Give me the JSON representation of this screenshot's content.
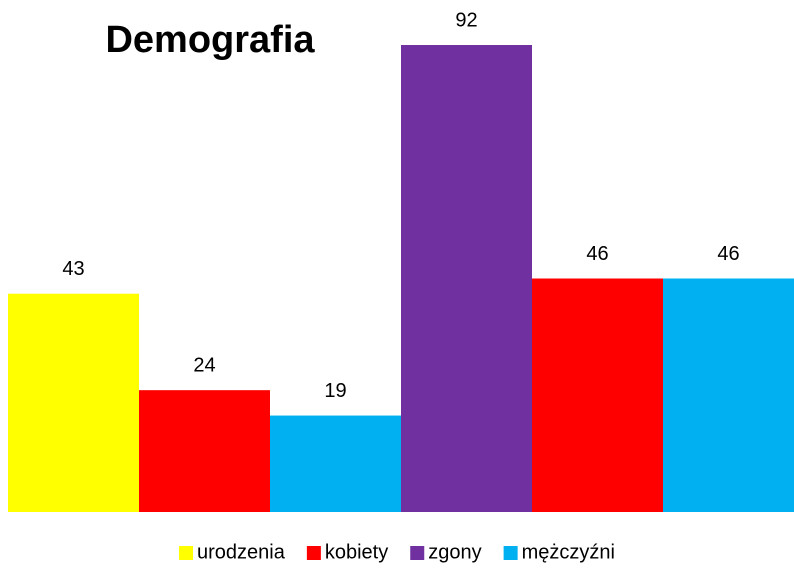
{
  "chart_data": {
    "type": "bar",
    "title": "Demografia",
    "categories": [
      null,
      null,
      null,
      null,
      null,
      null
    ],
    "series": [
      {
        "name": "urodzenia",
        "color": "#ffff00",
        "values": [
          43,
          null,
          null,
          null,
          null,
          null
        ]
      },
      {
        "name": "kobiety",
        "color": "#ff0000",
        "values": [
          null,
          24,
          null,
          null,
          46,
          null
        ]
      },
      {
        "name": "zgony",
        "color": "#7030a0",
        "values": [
          null,
          null,
          null,
          92,
          null,
          null
        ]
      },
      {
        "name": "mężczyźni",
        "color": "#00b0f0",
        "values": [
          null,
          null,
          19,
          null,
          null,
          46
        ]
      }
    ],
    "ylim": [
      0,
      92
    ],
    "legend": "bottom"
  }
}
